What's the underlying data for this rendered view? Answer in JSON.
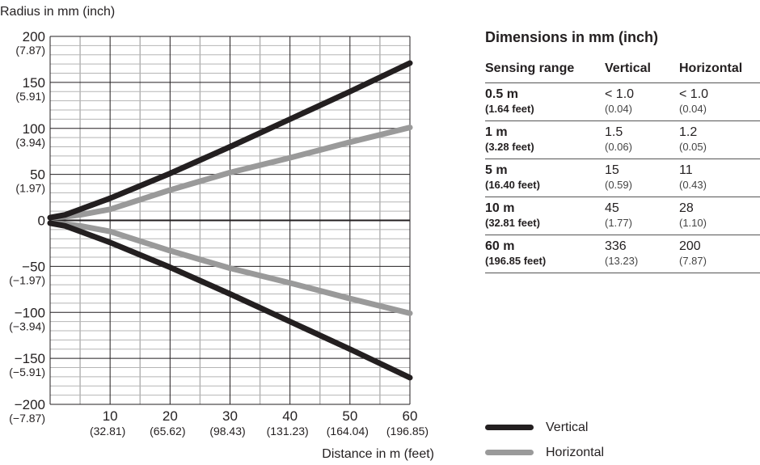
{
  "chart_data": {
    "type": "line",
    "ylabel": "Radius in mm (inch)",
    "xlabel": "Distance in m (feet)",
    "xlim": [
      0,
      60
    ],
    "ylim": [
      -200,
      200
    ],
    "grid": true,
    "x_ticks": [
      {
        "value": 10,
        "label": "10",
        "sub": "(32.81)"
      },
      {
        "value": 20,
        "label": "20",
        "sub": "(65.62)"
      },
      {
        "value": 30,
        "label": "30",
        "sub": "(98.43)"
      },
      {
        "value": 40,
        "label": "40",
        "sub": "(131.23)"
      },
      {
        "value": 50,
        "label": "50",
        "sub": "(164.04)"
      },
      {
        "value": 60,
        "label": "60",
        "sub": "(196.85)"
      }
    ],
    "y_ticks": [
      {
        "value": 200,
        "label": "200",
        "sub": "(7.87)"
      },
      {
        "value": 150,
        "label": "150",
        "sub": "(5.91)"
      },
      {
        "value": 100,
        "label": "100",
        "sub": "(3.94)"
      },
      {
        "value": 50,
        "label": "50",
        "sub": "(1.97)"
      },
      {
        "value": 0,
        "label": "0",
        "sub": ""
      },
      {
        "value": -50,
        "label": "−50",
        "sub": "(−1.97)"
      },
      {
        "value": -100,
        "label": "−100",
        "sub": "(−3.94)"
      },
      {
        "value": -150,
        "label": "−150",
        "sub": "(−5.91)"
      },
      {
        "value": -200,
        "label": "−200",
        "sub": "(−7.87)"
      }
    ],
    "x": [
      0,
      2.5,
      5,
      10,
      20,
      30,
      40,
      50,
      60
    ],
    "series": [
      {
        "name": "Vertical",
        "color": "#231f20",
        "values": [
          3,
          6,
          12,
          24,
          51,
          80,
          110,
          140,
          171
        ],
        "mirrored": true
      },
      {
        "name": "Horizontal",
        "color": "#9a9a9a",
        "values": [
          3,
          4,
          6,
          12,
          33,
          52,
          68,
          85,
          101
        ],
        "mirrored": true
      }
    ],
    "legend": "bottom-right"
  },
  "table": {
    "title": "Dimensions in mm (inch)",
    "headers": [
      "Sensing range",
      "Vertical",
      "Horizontal"
    ],
    "rows": [
      {
        "range": "0.5 m",
        "range_sub": "(1.64 feet)",
        "v": "< 1.0",
        "v_sub": "(0.04)",
        "h": "< 1.0",
        "h_sub": "(0.04)"
      },
      {
        "range": "1 m",
        "range_sub": "(3.28 feet)",
        "v": "1.5",
        "v_sub": "(0.06)",
        "h": "1.2",
        "h_sub": "(0.05)"
      },
      {
        "range": "5 m",
        "range_sub": "(16.40 feet)",
        "v": "15",
        "v_sub": "(0.59)",
        "h": "11",
        "h_sub": "(0.43)"
      },
      {
        "range": "10 m",
        "range_sub": "(32.81 feet)",
        "v": "45",
        "v_sub": "(1.77)",
        "h": "28",
        "h_sub": "(1.10)"
      },
      {
        "range": "60 m",
        "range_sub": "(196.85 feet)",
        "v": "336",
        "v_sub": "(13.23)",
        "h": "200",
        "h_sub": "(7.87)"
      }
    ]
  }
}
